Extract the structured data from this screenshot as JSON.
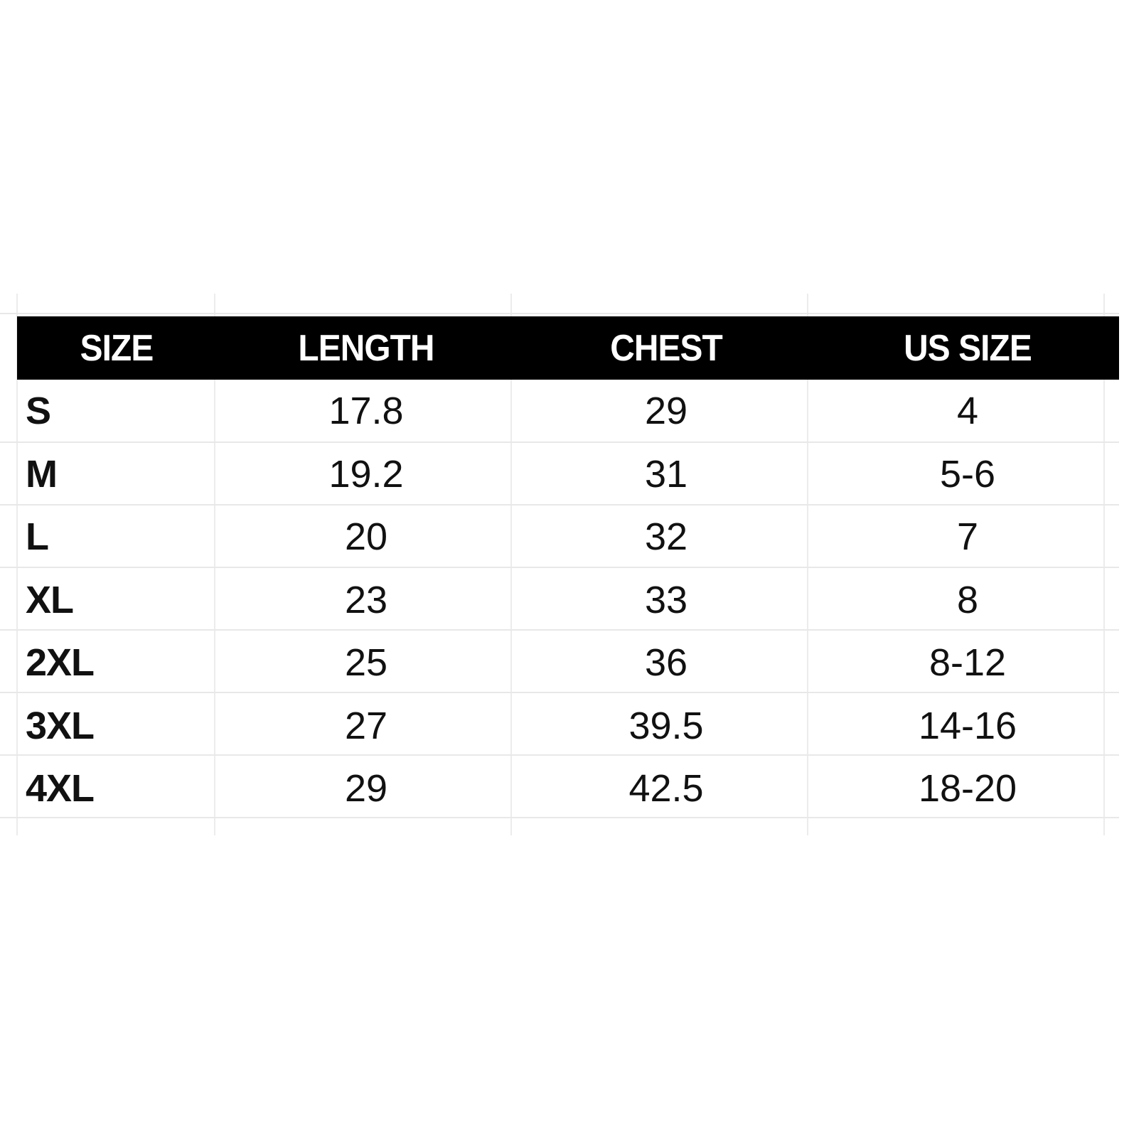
{
  "table": {
    "headers": [
      "SIZE",
      "LENGTH",
      "CHEST",
      "US SIZE"
    ],
    "rows": [
      {
        "size": "S",
        "length": "17.8",
        "chest": "29",
        "us_size": "4"
      },
      {
        "size": "M",
        "length": "19.2",
        "chest": "31",
        "us_size": "5-6"
      },
      {
        "size": "L",
        "length": "20",
        "chest": "32",
        "us_size": "7"
      },
      {
        "size": "XL",
        "length": "23",
        "chest": "33",
        "us_size": "8"
      },
      {
        "size": "2XL",
        "length": "25",
        "chest": "36",
        "us_size": "8-12"
      },
      {
        "size": "3XL",
        "length": "27",
        "chest": "39.5",
        "us_size": "14-16"
      },
      {
        "size": "4XL",
        "length": "29",
        "chest": "42.5",
        "us_size": "18-20"
      }
    ]
  },
  "colors": {
    "header_background": "#000000",
    "header_text": "#ffffff",
    "body_text": "#111111",
    "grid_line": "#ececec"
  }
}
